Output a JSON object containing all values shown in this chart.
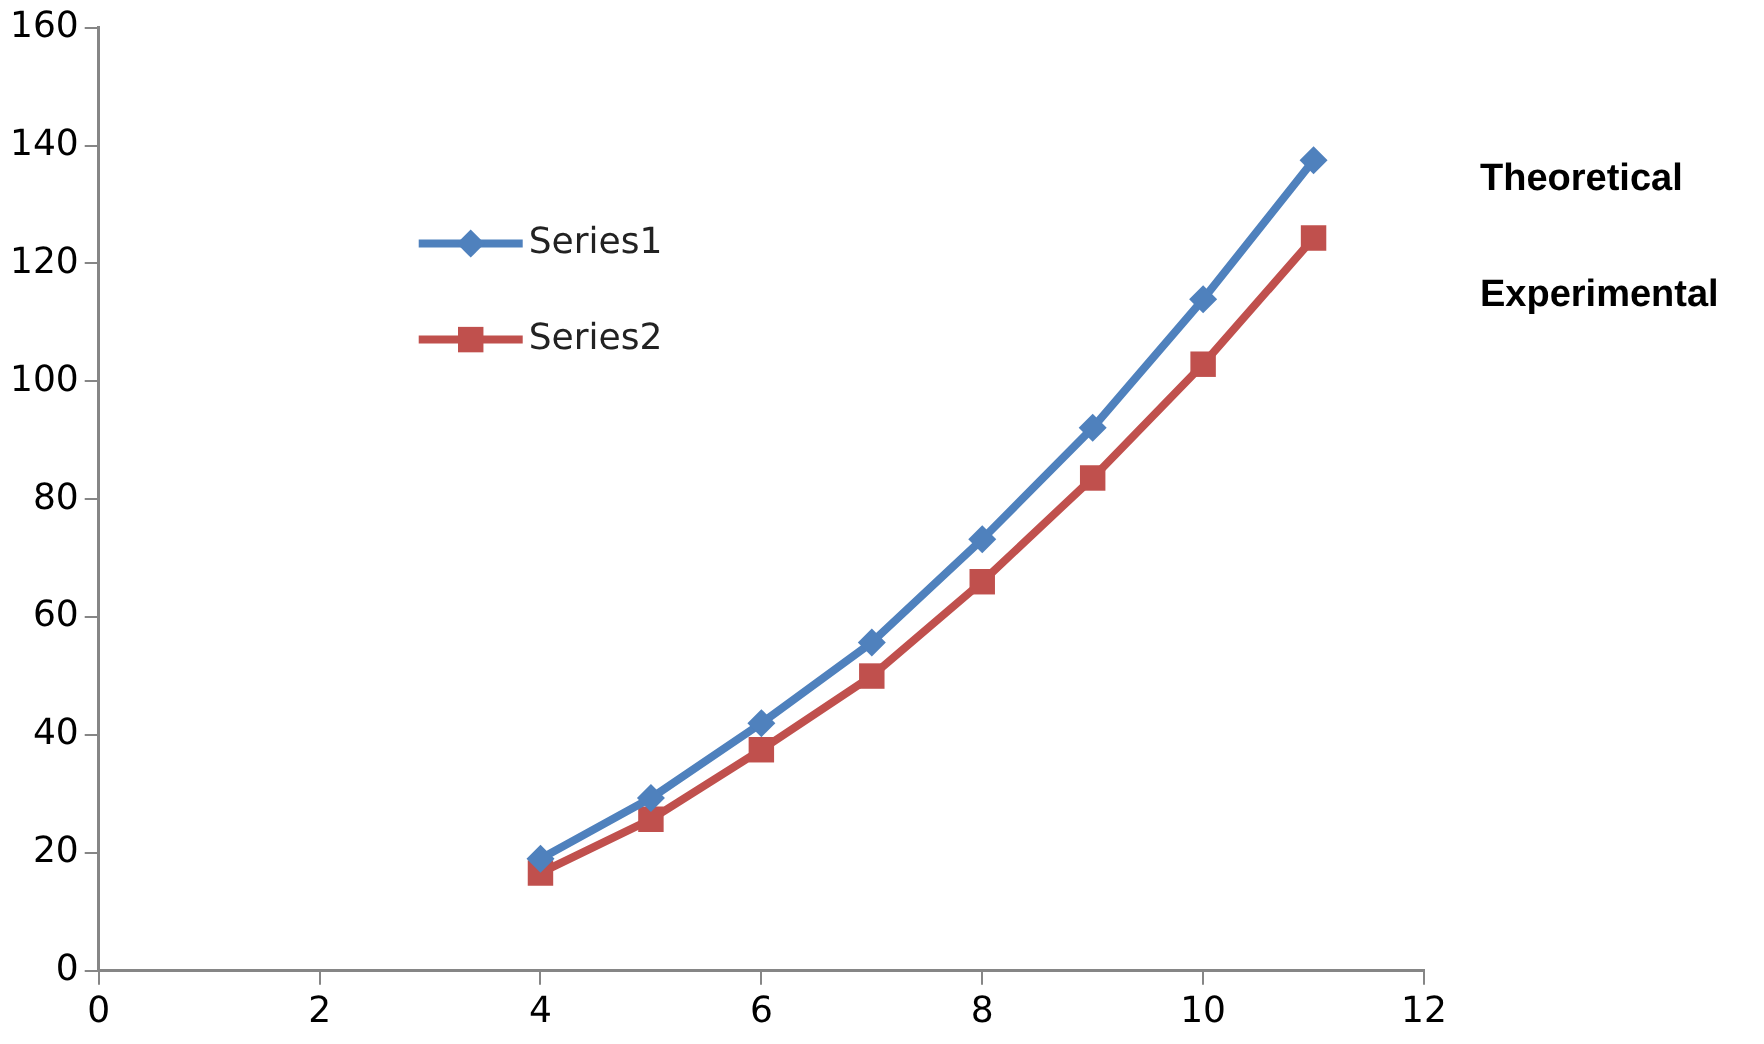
{
  "chart_data": {
    "type": "line",
    "x": [
      4,
      5,
      6,
      7,
      8,
      9,
      10,
      11
    ],
    "series": [
      {
        "name": "Series1",
        "color": "#4f81bd",
        "marker": "diamond",
        "values": [
          19,
          29.3,
          42,
          55.7,
          73.2,
          92.1,
          113.9,
          137.5
        ]
      },
      {
        "name": "Series2",
        "color": "#c0504d",
        "marker": "square",
        "values": [
          16.6,
          25.7,
          37.5,
          50,
          66,
          83.6,
          102.9,
          124.3
        ]
      }
    ],
    "xlim": [
      0,
      12
    ],
    "xticks": [
      0,
      2,
      4,
      6,
      8,
      10,
      12
    ],
    "ylim": [
      0,
      160
    ],
    "yticks": [
      0,
      20,
      40,
      60,
      80,
      100,
      120,
      140,
      160
    ],
    "grid": false,
    "legend": "top left",
    "annotations": [
      "Theoretical",
      "Experimental"
    ]
  }
}
